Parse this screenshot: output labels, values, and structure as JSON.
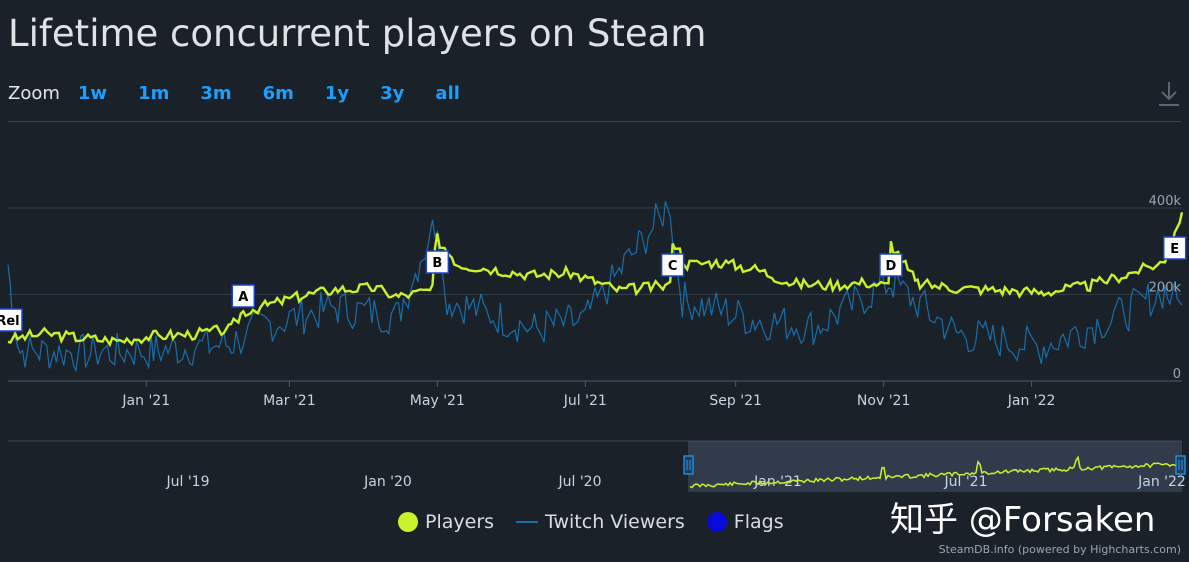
{
  "page": {
    "title": "Lifetime concurrent players on Steam",
    "zoom_label": "Zoom",
    "zoom_options": [
      "1w",
      "1m",
      "3m",
      "6m",
      "1y",
      "3y",
      "all"
    ],
    "legend": [
      {
        "label": "Players",
        "color": "#c8f22a",
        "kind": "dot"
      },
      {
        "label": "Twitch Viewers",
        "color": "#1a6ea8",
        "kind": "line"
      },
      {
        "label": "Flags",
        "color": "#0a0ad8",
        "kind": "dot"
      }
    ],
    "watermark": "知乎 @Forsaken",
    "credits": "SteamDB.info (powered by Highcharts.com)"
  },
  "chart_data": {
    "type": "line",
    "x_ticks": [
      "Jan '21",
      "Mar '21",
      "May '21",
      "Jul '21",
      "Sep '21",
      "Nov '21",
      "Jan '22"
    ],
    "y_ticks": [
      "0",
      "200k",
      "400k"
    ],
    "ylim": [
      0,
      400000
    ],
    "x_range": [
      "2020-11-05",
      "2022-03-04"
    ],
    "series": [
      {
        "name": "Players",
        "color": "#c8f22a",
        "points": [
          [
            "2020-11-05",
            95000
          ],
          [
            "2020-11-20",
            110000
          ],
          [
            "2020-12-05",
            100000
          ],
          [
            "2020-12-20",
            93000
          ],
          [
            "2021-01-05",
            105000
          ],
          [
            "2021-01-20",
            108000
          ],
          [
            "2021-02-05",
            120000
          ],
          [
            "2021-02-10",
            160000
          ],
          [
            "2021-02-20",
            175000
          ],
          [
            "2021-03-05",
            195000
          ],
          [
            "2021-03-20",
            212000
          ],
          [
            "2021-04-05",
            215000
          ],
          [
            "2021-04-15",
            195000
          ],
          [
            "2021-04-29",
            210000
          ],
          [
            "2021-05-01",
            330000
          ],
          [
            "2021-05-10",
            270000
          ],
          [
            "2021-05-25",
            258000
          ],
          [
            "2021-06-10",
            245000
          ],
          [
            "2021-06-25",
            250000
          ],
          [
            "2021-07-05",
            230000
          ],
          [
            "2021-07-15",
            210000
          ],
          [
            "2021-07-30",
            218000
          ],
          [
            "2021-08-05",
            220000
          ],
          [
            "2021-08-06",
            330000
          ],
          [
            "2021-08-12",
            270000
          ],
          [
            "2021-08-25",
            275000
          ],
          [
            "2021-09-10",
            258000
          ],
          [
            "2021-09-25",
            225000
          ],
          [
            "2021-10-10",
            222000
          ],
          [
            "2021-10-25",
            228000
          ],
          [
            "2021-11-03",
            220000
          ],
          [
            "2021-11-04",
            320000
          ],
          [
            "2021-11-15",
            225000
          ],
          [
            "2021-12-01",
            215000
          ],
          [
            "2021-12-20",
            210000
          ],
          [
            "2022-01-05",
            205000
          ],
          [
            "2022-01-25",
            220000
          ],
          [
            "2022-02-10",
            248000
          ],
          [
            "2022-02-25",
            275000
          ],
          [
            "2022-03-04",
            390000
          ]
        ]
      },
      {
        "name": "Twitch Viewers",
        "color": "#1a6ea8",
        "points": [
          [
            "2020-11-05",
            270000
          ],
          [
            "2020-11-10",
            70000
          ],
          [
            "2020-12-05",
            65000
          ],
          [
            "2021-01-05",
            70000
          ],
          [
            "2021-02-05",
            85000
          ],
          [
            "2021-02-20",
            130000
          ],
          [
            "2021-03-20",
            170000
          ],
          [
            "2021-04-15",
            150000
          ],
          [
            "2021-05-01",
            375000
          ],
          [
            "2021-05-05",
            190000
          ],
          [
            "2021-06-10",
            120000
          ],
          [
            "2021-07-01",
            140000
          ],
          [
            "2021-08-05",
            410000
          ],
          [
            "2021-08-10",
            190000
          ],
          [
            "2021-09-10",
            140000
          ],
          [
            "2021-10-05",
            125000
          ],
          [
            "2021-11-04",
            230000
          ],
          [
            "2021-12-01",
            110000
          ],
          [
            "2022-01-05",
            80000
          ],
          [
            "2022-02-10",
            160000
          ],
          [
            "2022-02-25",
            210000
          ],
          [
            "2022-03-04",
            175000
          ]
        ]
      }
    ],
    "flags": [
      {
        "label": "Rel",
        "date": "2020-11-05"
      },
      {
        "label": "A",
        "date": "2021-02-10"
      },
      {
        "label": "B",
        "date": "2021-05-01"
      },
      {
        "label": "C",
        "date": "2021-08-06"
      },
      {
        "label": "D",
        "date": "2021-11-04"
      },
      {
        "label": "E",
        "date": "2022-03-01"
      }
    ],
    "navigator": {
      "x_ticks": [
        "Jul '19",
        "Jan '20",
        "Jul '20",
        "Jan '21",
        "Jul '21",
        "Jan '22"
      ]
    }
  }
}
